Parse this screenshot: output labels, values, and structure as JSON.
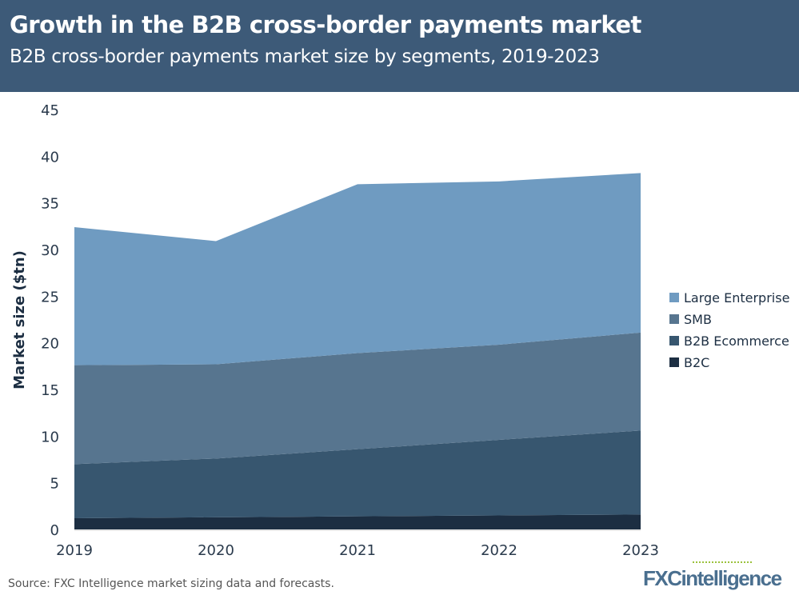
{
  "header": {
    "title": "Growth in the B2B cross-border payments market",
    "subtitle": "B2B cross-border payments market size by segments, 2019-2023"
  },
  "footer": {
    "source": "Source: FXC Intelligence market sizing data and forecasts.",
    "logo": "FXCintelligence"
  },
  "chart_data": {
    "type": "area",
    "stacked": true,
    "title": "Growth in the B2B cross-border payments market",
    "subtitle": "B2B cross-border payments market size by segments, 2019-2023",
    "xlabel": "",
    "ylabel": "Market size ($tn)",
    "categories": [
      "2019",
      "2020",
      "2021",
      "2022",
      "2023"
    ],
    "ylim": [
      0,
      45
    ],
    "yticks": [
      0,
      5,
      10,
      15,
      20,
      25,
      30,
      35,
      40,
      45
    ],
    "legend_position": "right",
    "series": [
      {
        "name": "B2C",
        "color": "#1c2e42",
        "values": [
          1.2,
          1.3,
          1.4,
          1.5,
          1.6
        ]
      },
      {
        "name": "B2B Ecommerce",
        "color": "#37566f",
        "values": [
          5.8,
          6.3,
          7.2,
          8.1,
          9.0
        ]
      },
      {
        "name": "SMB",
        "color": "#57758f",
        "values": [
          10.6,
          10.1,
          10.3,
          10.2,
          10.5
        ]
      },
      {
        "name": "Large Enterprise",
        "color": "#6f9bc1",
        "values": [
          14.8,
          13.2,
          18.1,
          17.5,
          17.1
        ]
      }
    ]
  }
}
